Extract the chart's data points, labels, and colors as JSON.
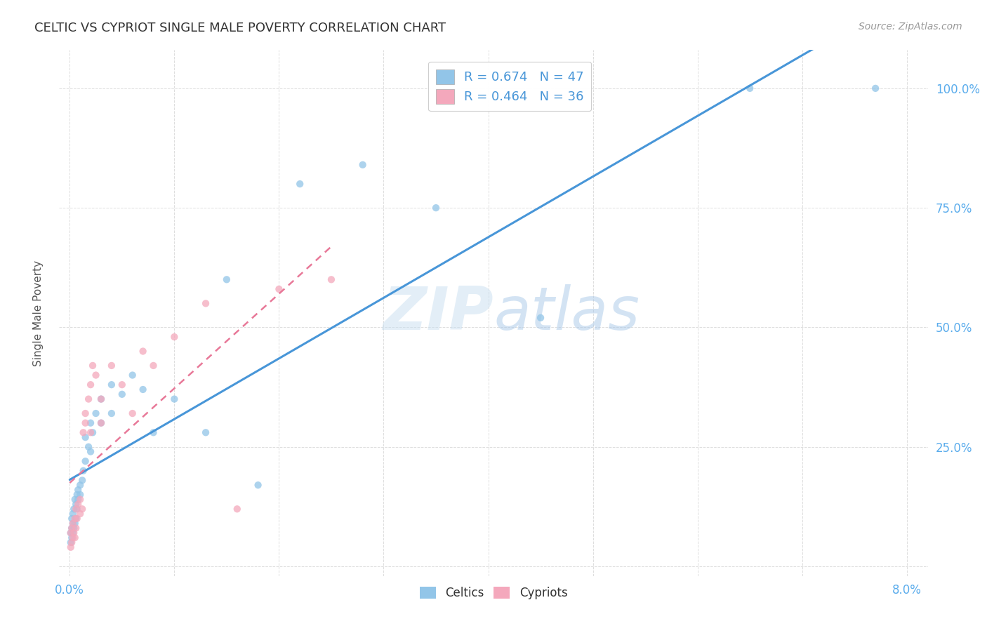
{
  "title": "CELTIC VS CYPRIOT SINGLE MALE POVERTY CORRELATION CHART",
  "source": "Source: ZipAtlas.com",
  "ylabel": "Single Male Poverty",
  "ytick_values": [
    0.0,
    0.25,
    0.5,
    0.75,
    1.0
  ],
  "ytick_labels": [
    "",
    "25.0%",
    "50.0%",
    "75.0%",
    "100.0%"
  ],
  "xtick_values": [
    0.0,
    0.08
  ],
  "xtick_labels": [
    "0.0%",
    "8.0%"
  ],
  "celtics_color": "#92c5e8",
  "cypriots_color": "#f4a8bc",
  "line_celtics_color": "#4896d8",
  "line_cypriots_color": "#e87898",
  "watermark_color": "#cce4f4",
  "legend_celtics_label": "R = 0.674   N = 47",
  "legend_cypriots_label": "R = 0.464   N = 36",
  "celtics_x": [
    0.0001,
    0.0001,
    0.0002,
    0.0002,
    0.0002,
    0.0003,
    0.0003,
    0.0003,
    0.0004,
    0.0004,
    0.0005,
    0.0005,
    0.0006,
    0.0006,
    0.0007,
    0.0007,
    0.0008,
    0.0008,
    0.001,
    0.001,
    0.0012,
    0.0013,
    0.0015,
    0.0015,
    0.0018,
    0.002,
    0.002,
    0.0022,
    0.0025,
    0.003,
    0.003,
    0.004,
    0.004,
    0.005,
    0.006,
    0.007,
    0.008,
    0.01,
    0.013,
    0.015,
    0.018,
    0.022,
    0.028,
    0.035,
    0.045,
    0.065,
    0.077
  ],
  "celtics_y": [
    0.05,
    0.07,
    0.06,
    0.08,
    0.1,
    0.07,
    0.09,
    0.11,
    0.08,
    0.12,
    0.09,
    0.14,
    0.1,
    0.13,
    0.12,
    0.15,
    0.14,
    0.16,
    0.15,
    0.17,
    0.18,
    0.2,
    0.22,
    0.27,
    0.25,
    0.24,
    0.3,
    0.28,
    0.32,
    0.3,
    0.35,
    0.32,
    0.38,
    0.36,
    0.4,
    0.37,
    0.28,
    0.35,
    0.28,
    0.6,
    0.17,
    0.8,
    0.84,
    0.75,
    0.52,
    1.0,
    1.0
  ],
  "cypriots_x": [
    0.0001,
    0.0001,
    0.0002,
    0.0002,
    0.0003,
    0.0003,
    0.0004,
    0.0005,
    0.0005,
    0.0006,
    0.0006,
    0.0007,
    0.0008,
    0.001,
    0.001,
    0.0012,
    0.0013,
    0.0015,
    0.0015,
    0.0018,
    0.002,
    0.002,
    0.0022,
    0.0025,
    0.003,
    0.003,
    0.004,
    0.005,
    0.006,
    0.007,
    0.008,
    0.01,
    0.013,
    0.016,
    0.02,
    0.025
  ],
  "cypriots_y": [
    0.04,
    0.07,
    0.05,
    0.08,
    0.06,
    0.09,
    0.07,
    0.06,
    0.1,
    0.08,
    0.12,
    0.1,
    0.13,
    0.11,
    0.14,
    0.12,
    0.28,
    0.3,
    0.32,
    0.35,
    0.28,
    0.38,
    0.42,
    0.4,
    0.3,
    0.35,
    0.42,
    0.38,
    0.32,
    0.45,
    0.42,
    0.48,
    0.55,
    0.12,
    0.58,
    0.6
  ],
  "xlim": [
    -0.001,
    0.082
  ],
  "ylim": [
    -0.02,
    1.08
  ]
}
